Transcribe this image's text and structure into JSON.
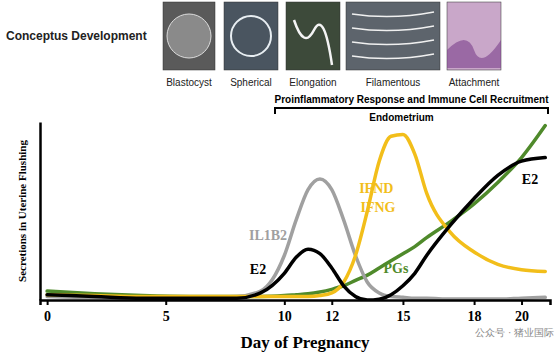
{
  "chart_data": {
    "type": "line",
    "title": "Conceptus Development",
    "stages": [
      "Blastocyst",
      "Spherical",
      "Elongation",
      "Filamentous",
      "Attachment"
    ],
    "bracket_label": "Proinflammatory Response and Immune Cell Recruitment",
    "bracket_sublabel": "Endometrium",
    "x_label": "Day of Pregnancy",
    "y_label": "Secretions in Uterine Flushing",
    "annotations": [
      "公众号 · 猪业国际"
    ],
    "x": [
      0,
      2,
      4,
      6,
      8,
      9,
      10,
      10.5,
      11,
      11.5,
      12,
      12.5,
      13,
      13.5,
      14,
      14.5,
      15,
      15.5,
      16,
      17,
      18,
      19,
      20,
      21
    ],
    "series": [
      {
        "name": "IL1B2",
        "color": "#a0a0a0",
        "values": [
          2,
          1.5,
          1.5,
          1.5,
          2,
          5,
          25,
          45,
          62,
          68,
          62,
          45,
          25,
          10,
          4,
          2,
          1.5,
          1,
          1,
          0.5,
          0.5,
          0.5,
          1,
          1.5
        ]
      },
      {
        "name": "E2",
        "color": "#000000",
        "values": [
          3,
          2,
          1,
          1,
          1,
          4,
          15,
          24,
          28.5,
          26,
          18,
          8,
          2,
          0,
          0.5,
          3,
          8,
          15,
          25,
          42,
          57,
          70,
          78,
          80
        ]
      },
      {
        "name": "IFND IFNG",
        "color": "#f2be1a",
        "values": [
          3,
          2.5,
          2,
          2,
          2,
          2,
          2,
          2,
          2,
          2.5,
          4,
          10,
          25,
          50,
          78,
          92,
          93,
          82,
          60,
          38,
          27,
          20,
          17,
          16
        ]
      },
      {
        "name": "PGs",
        "color": "#4f8a2b",
        "values": [
          5,
          3.5,
          2.5,
          2,
          2,
          2,
          2.5,
          3,
          3.5,
          4.5,
          6,
          8,
          11,
          14,
          18,
          22,
          26,
          30,
          35,
          44,
          54,
          66,
          80,
          98
        ]
      }
    ],
    "xlim": [
      -0.3,
      21.2
    ],
    "ylim": [
      0,
      100
    ],
    "xticks": [
      0,
      5,
      10,
      12,
      15,
      18,
      20
    ],
    "tick_labels": "x",
    "grid": false
  }
}
